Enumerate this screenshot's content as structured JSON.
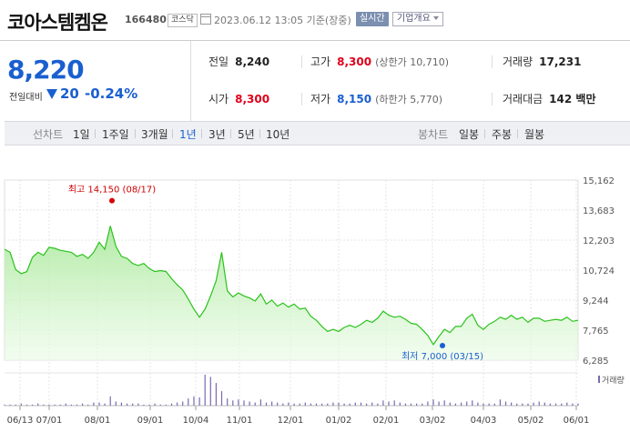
{
  "header": {
    "name": "코아스템켐온",
    "code": "166480",
    "market": "코스닥",
    "timestamp": "2023.06.12 13:05 기준(장중)",
    "realtime": "실시간",
    "company_info": "기업개요"
  },
  "quote": {
    "price": "8,220",
    "change_label": "전일대비",
    "change_abs": "20",
    "change_pct": "-0.24%",
    "prev_close_label": "전일",
    "prev_close": "8,240",
    "open_label": "시가",
    "open": "8,300",
    "high_label": "고가",
    "high": "8,300",
    "upper_limit": "(상한가 10,710)",
    "low_label": "저가",
    "low": "8,150",
    "lower_limit": "(하한가 5,770)",
    "volume_label": "거래량",
    "volume": "17,231",
    "amount_label": "거래대금",
    "amount": "142 백만",
    "up_color": "#e0001b",
    "down_color": "#1a5fd0"
  },
  "period_bar": {
    "line_label": "선차트",
    "line_periods": [
      "1일",
      "1주일",
      "3개월",
      "1년",
      "3년",
      "5년",
      "10년"
    ],
    "selected": "1년",
    "candle_label": "봉차트",
    "candle_periods": [
      "일봉",
      "주봉",
      "월봉"
    ]
  },
  "chart_data": {
    "type": "area",
    "y_ticks": [
      "15,162",
      "13,683",
      "12,203",
      "10,724",
      "9,244",
      "7,765",
      "6,285"
    ],
    "ylim": [
      6285,
      15162
    ],
    "x_ticks": [
      "06/13",
      "07/01",
      "08/01",
      "09/01",
      "10/04",
      "11/01",
      "12/01",
      "01/02",
      "02/01",
      "03/02",
      "04/03",
      "05/02",
      "06/01"
    ],
    "series": [
      {
        "values": [
          11750,
          11600,
          10750,
          10550,
          10650,
          11350,
          11600,
          11450,
          11850,
          11800,
          11700,
          11650,
          11600,
          11400,
          11500,
          11300,
          11600,
          12100,
          11750,
          12900,
          11900,
          11400,
          11300,
          11050,
          10950,
          11050,
          10800,
          10650,
          10700,
          10650,
          10300,
          10000,
          9750,
          9300,
          8800,
          8400,
          8800,
          9450,
          10200,
          11600,
          9700,
          9400,
          9600,
          9450,
          9350,
          9200,
          9550,
          9050,
          9250,
          8950,
          9100,
          8900,
          9050,
          8800,
          8850,
          8450,
          8250,
          7950,
          7700,
          7800,
          7700,
          7900,
          8000,
          7900,
          8050,
          8250,
          8150,
          8350,
          8700,
          8500,
          8400,
          8450,
          8300,
          8100,
          8050,
          7800,
          7500,
          7050,
          7450,
          7800,
          7650,
          7950,
          7950,
          8350,
          8550,
          8000,
          7800,
          8050,
          8200,
          8400,
          8300,
          8500,
          8300,
          8400,
          8150,
          8350,
          8350,
          8200,
          8250,
          8300,
          8250,
          8400,
          8200,
          8250
        ],
        "color": "#2bc21d"
      }
    ],
    "volume": [
      1,
      1,
      1,
      2,
      1,
      1,
      2,
      1,
      1,
      1,
      1,
      2,
      1,
      1,
      2,
      1,
      3,
      3,
      2,
      9,
      4,
      3,
      2,
      2,
      2,
      1,
      1,
      2,
      1,
      1,
      2,
      3,
      4,
      7,
      9,
      8,
      30,
      28,
      22,
      14,
      7,
      5,
      6,
      5,
      4,
      3,
      6,
      3,
      4,
      3,
      2,
      3,
      2,
      2,
      3,
      2,
      2,
      2,
      2,
      3,
      3,
      2,
      2,
      3,
      3,
      2,
      3,
      2,
      5,
      4,
      5,
      3,
      2,
      2,
      2,
      2,
      4,
      6,
      4,
      5,
      3,
      2,
      3,
      4,
      5,
      3,
      2,
      2,
      2,
      6,
      4,
      3,
      2,
      2,
      2,
      3,
      4,
      3,
      2,
      2,
      2,
      3,
      2,
      2
    ],
    "high_annotation": "최고 14,150 (08/17)",
    "low_annotation": "최저 7,000 (03/15)",
    "volume_legend": "거래량",
    "grid": true
  }
}
